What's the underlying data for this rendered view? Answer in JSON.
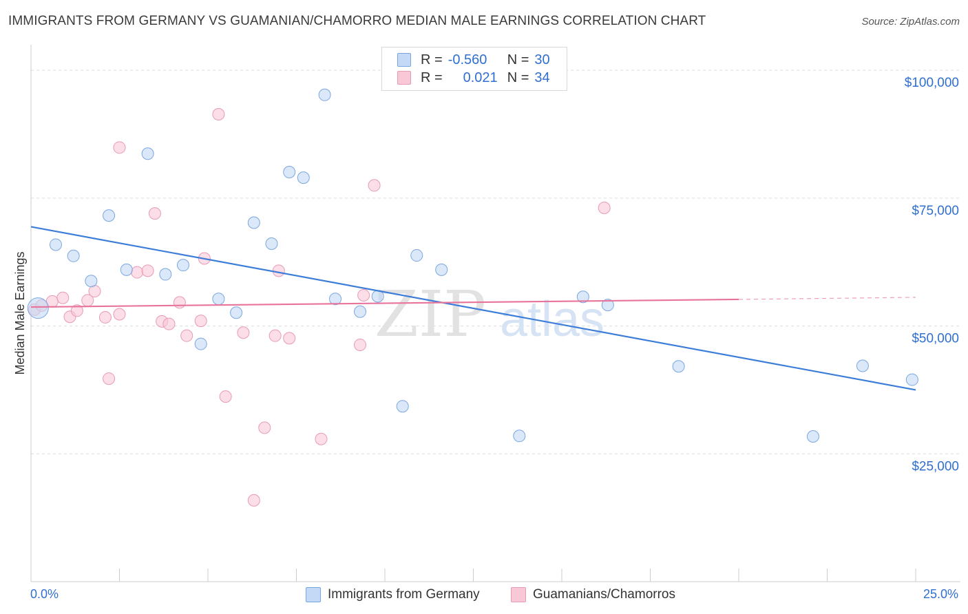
{
  "title": "IMMIGRANTS FROM GERMANY VS GUAMANIAN/CHAMORRO MEDIAN MALE EARNINGS CORRELATION CHART",
  "source": "Source: ZipAtlas.com",
  "legend": {
    "row1": {
      "r_label": "R =",
      "r_value": "-0.560",
      "n_label": "N =",
      "n_value": "30"
    },
    "row2": {
      "r_label": "R =",
      "r_value": "0.021",
      "n_label": "N =",
      "n_value": "34"
    }
  },
  "bottom_legend": {
    "series1": "Immigrants from Germany",
    "series2": "Guamanians/Chamorros"
  },
  "x_axis": {
    "min_label": "0.0%",
    "max_label": "25.0%"
  },
  "colors": {
    "blue": "#3b7dd8",
    "pink": "#e8749b",
    "blue_fill": "#c3d9f5",
    "pink_fill": "#f8c8d7",
    "tick_text": "#2f6fd0"
  },
  "chart_data": {
    "type": "scatter",
    "title": "IMMIGRANTS FROM GERMANY VS GUAMANIAN/CHAMORRO MEDIAN MALE EARNINGS CORRELATION CHART",
    "xlabel": "",
    "ylabel": "Median Male Earnings",
    "xlim": [
      0,
      25
    ],
    "ylim": [
      0,
      105000
    ],
    "y_ticks": [
      25000,
      50000,
      75000,
      100000
    ],
    "y_tick_labels": [
      "$25,000",
      "$50,000",
      "$75,000",
      "$100,000"
    ],
    "grid": true,
    "series": [
      {
        "name": "Immigrants from Germany",
        "color": "#3b7dd8",
        "trend": {
          "x": [
            0,
            25
          ],
          "y": [
            69400,
            37500
          ]
        },
        "points": [
          [
            0.2,
            53500
          ],
          [
            0.7,
            65900
          ],
          [
            1.2,
            63700
          ],
          [
            1.7,
            58800
          ],
          [
            2.2,
            71600
          ],
          [
            2.7,
            61000
          ],
          [
            3.3,
            83700
          ],
          [
            3.8,
            60100
          ],
          [
            4.3,
            61900
          ],
          [
            4.8,
            46500
          ],
          [
            5.3,
            55300
          ],
          [
            5.8,
            52600
          ],
          [
            6.3,
            70200
          ],
          [
            6.8,
            66100
          ],
          [
            7.3,
            80100
          ],
          [
            7.7,
            79000
          ],
          [
            8.3,
            95200
          ],
          [
            8.6,
            55300
          ],
          [
            9.3,
            52800
          ],
          [
            9.8,
            55800
          ],
          [
            10.5,
            34300
          ],
          [
            10.9,
            63800
          ],
          [
            11.6,
            61000
          ],
          [
            13.8,
            28500
          ],
          [
            15.6,
            55700
          ],
          [
            16.3,
            54100
          ],
          [
            18.3,
            42100
          ],
          [
            22.1,
            28400
          ],
          [
            23.5,
            42200
          ],
          [
            24.9,
            39500
          ]
        ]
      },
      {
        "name": "Guamanians/Chamorros",
        "color": "#e8749b",
        "trend": {
          "x": [
            0,
            20
          ],
          "y": [
            53700,
            55200
          ],
          "x_dashed": [
            20,
            25
          ],
          "y_dashed": [
            55200,
            55600
          ]
        },
        "points": [
          [
            0.1,
            53200
          ],
          [
            0.3,
            54000
          ],
          [
            0.6,
            54800
          ],
          [
            0.9,
            55500
          ],
          [
            1.1,
            51800
          ],
          [
            1.3,
            53000
          ],
          [
            1.6,
            55000
          ],
          [
            1.8,
            56800
          ],
          [
            2.1,
            51700
          ],
          [
            2.2,
            39700
          ],
          [
            2.5,
            52300
          ],
          [
            2.5,
            84900
          ],
          [
            3.0,
            60500
          ],
          [
            3.3,
            60800
          ],
          [
            3.5,
            72000
          ],
          [
            3.7,
            50900
          ],
          [
            3.9,
            50400
          ],
          [
            4.2,
            54600
          ],
          [
            4.4,
            48100
          ],
          [
            4.8,
            51000
          ],
          [
            4.9,
            63200
          ],
          [
            5.3,
            91400
          ],
          [
            5.5,
            36200
          ],
          [
            6.0,
            48700
          ],
          [
            6.3,
            15900
          ],
          [
            6.6,
            30100
          ],
          [
            6.9,
            48100
          ],
          [
            7.0,
            60800
          ],
          [
            7.3,
            47600
          ],
          [
            8.2,
            27900
          ],
          [
            9.3,
            46300
          ],
          [
            9.4,
            56000
          ],
          [
            9.7,
            77500
          ],
          [
            16.2,
            73100
          ]
        ]
      }
    ]
  }
}
